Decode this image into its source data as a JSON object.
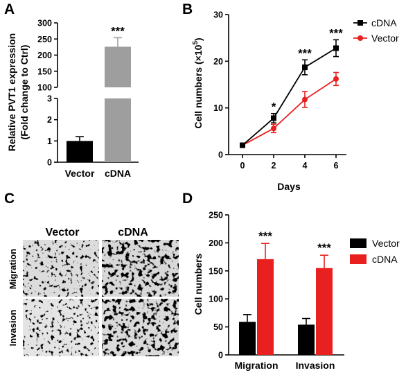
{
  "colors": {
    "black": "#000000",
    "gray": "#9e9e9e",
    "red": "#e8201f"
  },
  "chart_data": [
    {
      "panel": "A",
      "type": "bar",
      "ylabel": "Relative PVT1 expression",
      "ylabel2": "(Fold change to Ctrl)",
      "categories": [
        "Vector",
        "cDNA"
      ],
      "values": [
        1.0,
        226
      ],
      "errors": [
        0.2,
        28
      ],
      "bar_colors": [
        "#000000",
        "#9e9e9e"
      ],
      "broken_axis": {
        "lower": [
          0,
          3
        ],
        "upper": [
          100,
          300
        ]
      },
      "yticks_lower": [
        "0",
        "1",
        "2",
        "3"
      ],
      "yticks_upper": [
        "100",
        "150",
        "200",
        "250",
        "300"
      ],
      "annotations": [
        {
          "category": "cDNA",
          "text": "***"
        }
      ]
    },
    {
      "panel": "B",
      "type": "line",
      "xlabel": "Days",
      "ylabel": "Cell numbers (×10",
      "ylabel_sup": "5",
      "ylabel_end": ")",
      "x": [
        0,
        2,
        4,
        6
      ],
      "xticks": [
        "0",
        "2",
        "4",
        "6"
      ],
      "ylim": [
        0,
        30
      ],
      "yticks": [
        "0",
        "10",
        "20",
        "30"
      ],
      "series": [
        {
          "name": "cDNA",
          "color": "#000000",
          "marker": "square",
          "values": [
            2.0,
            7.8,
            18.7,
            22.8
          ],
          "errors": [
            0.3,
            1.0,
            1.6,
            1.8
          ]
        },
        {
          "name": "Vector",
          "color": "#e8201f",
          "marker": "circle",
          "values": [
            2.0,
            5.6,
            11.8,
            16.2
          ],
          "errors": [
            0.3,
            0.9,
            1.7,
            1.4
          ]
        }
      ],
      "annotations": [
        {
          "x": 2,
          "text": "*"
        },
        {
          "x": 4,
          "text": "***"
        },
        {
          "x": 6,
          "text": "***"
        }
      ],
      "legend": "top-right"
    },
    {
      "panel": "D",
      "type": "bar",
      "ylabel": "Cell numbers",
      "categories": [
        "Migration",
        "Invasion"
      ],
      "ylim": [
        0,
        250
      ],
      "yticks": [
        "0",
        "50",
        "100",
        "150",
        "200",
        "250"
      ],
      "series": [
        {
          "name": "Vector",
          "color": "#000000",
          "values": [
            59,
            54
          ],
          "errors": [
            13,
            11
          ]
        },
        {
          "name": "cDNA",
          "color": "#e8201f",
          "values": [
            171,
            155
          ],
          "errors": [
            28,
            23
          ]
        }
      ],
      "annotations": [
        {
          "category": "Migration",
          "text": "***"
        },
        {
          "category": "Invasion",
          "text": "***"
        }
      ],
      "legend": "right"
    }
  ],
  "panel_c": {
    "label": "C",
    "columns": [
      "Vector",
      "cDNA"
    ],
    "rows": [
      "Migration",
      "Invasion"
    ]
  },
  "panel_labels": {
    "a": "A",
    "b": "B",
    "d": "D"
  }
}
